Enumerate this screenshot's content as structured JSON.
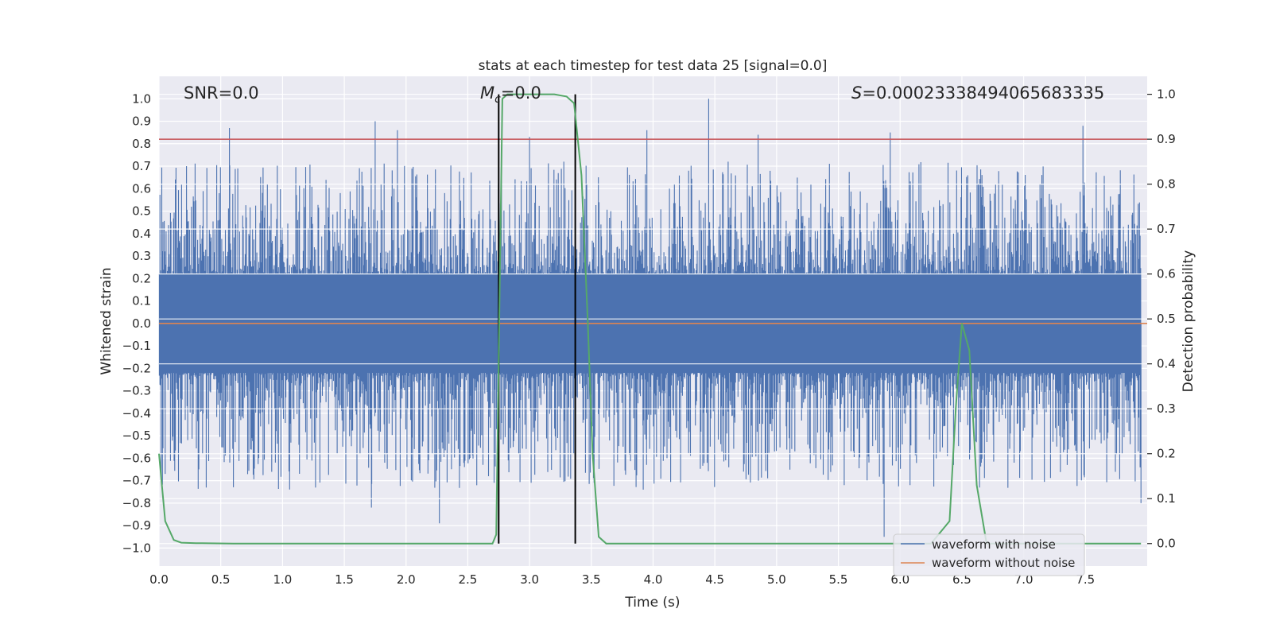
{
  "chart_data": {
    "type": "line",
    "title": "stats at each timestep for test data 25 [signal=0.0]",
    "xlabel": "Time (s)",
    "ylabel": "Whitened strain",
    "y2label": "Detection probability",
    "xlim": [
      0.0,
      8.0
    ],
    "ylim": [
      -1.08,
      1.1
    ],
    "y2lim": [
      -0.05,
      1.04
    ],
    "xticks": [
      "0.0",
      "0.5",
      "1.0",
      "1.5",
      "2.0",
      "2.5",
      "3.0",
      "3.5",
      "4.0",
      "4.5",
      "5.0",
      "5.5",
      "6.0",
      "6.5",
      "7.0",
      "7.5"
    ],
    "yticks": [
      "1.0",
      "0.9",
      "0.8",
      "0.7",
      "0.6",
      "0.5",
      "0.4",
      "0.3",
      "0.2",
      "0.1",
      "0.0",
      "-0.1",
      "-0.2",
      "-0.3",
      "-0.4",
      "-0.5",
      "-0.6",
      "-0.7",
      "-0.8",
      "-0.9",
      "-1.0"
    ],
    "y2ticks": [
      "1.0",
      "0.9",
      "0.8",
      "0.7",
      "0.6",
      "0.5",
      "0.4",
      "0.3",
      "0.2",
      "0.1",
      "0.0"
    ],
    "annotations": {
      "snr": "SNR=0.0",
      "mc_symbol": "M",
      "mc_sub": "c",
      "mc_value": "=0.0",
      "s_symbol": "S",
      "s_value": "=0.00023338494065683335"
    },
    "threshold_y2": 0.9,
    "vlines_x": [
      2.75,
      3.37
    ],
    "vlines_yrange": [
      0.0,
      1.0
    ],
    "noise_spikes": [
      {
        "x": 0.57,
        "y": 0.87
      },
      {
        "x": 1.75,
        "y": 0.9
      },
      {
        "x": 1.93,
        "y": 0.86
      },
      {
        "x": 2.75,
        "y": 0.53
      },
      {
        "x": 3.0,
        "y": 0.83
      },
      {
        "x": 4.45,
        "y": 1.0
      },
      {
        "x": 3.95,
        "y": 0.86
      },
      {
        "x": 4.85,
        "y": 0.84
      },
      {
        "x": 5.92,
        "y": 0.85
      },
      {
        "x": 7.48,
        "y": 0.88
      },
      {
        "x": 0.05,
        "y": -0.67
      },
      {
        "x": 1.72,
        "y": -0.82
      },
      {
        "x": 2.27,
        "y": -0.89
      },
      {
        "x": 3.92,
        "y": -0.74
      },
      {
        "x": 5.87,
        "y": -0.95
      },
      {
        "x": 7.95,
        "y": -0.8
      },
      {
        "x": 6.08,
        "y": -0.72
      }
    ],
    "series": [
      {
        "name": "waveform with noise",
        "color": "#4c72b0",
        "kind": "noise-band"
      },
      {
        "name": "waveform without noise",
        "color": "#dd8452",
        "y": 0.0
      },
      {
        "name": "detection probability",
        "color": "#55a868",
        "axis": "y2",
        "x": [
          0.0,
          0.05,
          0.12,
          0.18,
          0.3,
          0.6,
          1.0,
          2.0,
          2.7,
          2.73,
          2.76,
          2.78,
          2.82,
          2.88,
          3.0,
          3.1,
          3.2,
          3.3,
          3.36,
          3.42,
          3.47,
          3.51,
          3.56,
          3.62,
          4.0,
          5.0,
          6.0,
          6.25,
          6.4,
          6.45,
          6.5,
          6.56,
          6.62,
          6.7,
          7.0,
          7.5,
          7.95
        ],
        "y": [
          0.2,
          0.05,
          0.008,
          0.002,
          0.001,
          0.0,
          0.0,
          0.0,
          0.0,
          0.02,
          0.6,
          0.99,
          1.0,
          1.0,
          1.0,
          1.0,
          1.0,
          0.995,
          0.98,
          0.82,
          0.5,
          0.2,
          0.015,
          0.0,
          0.0,
          0.0,
          0.0,
          0.0,
          0.05,
          0.3,
          0.49,
          0.43,
          0.13,
          0.0,
          0.0,
          0.0,
          0.0
        ]
      }
    ],
    "legend": {
      "placement": "lower-right",
      "entries": [
        {
          "label": "waveform with noise",
          "color": "#4c72b0"
        },
        {
          "label": "waveform without noise",
          "color": "#dd8452"
        }
      ]
    },
    "colors": {
      "background": "#eaeaf2",
      "grid": "#ffffff",
      "threshold": "#c44e52",
      "vline": "#000000"
    }
  }
}
